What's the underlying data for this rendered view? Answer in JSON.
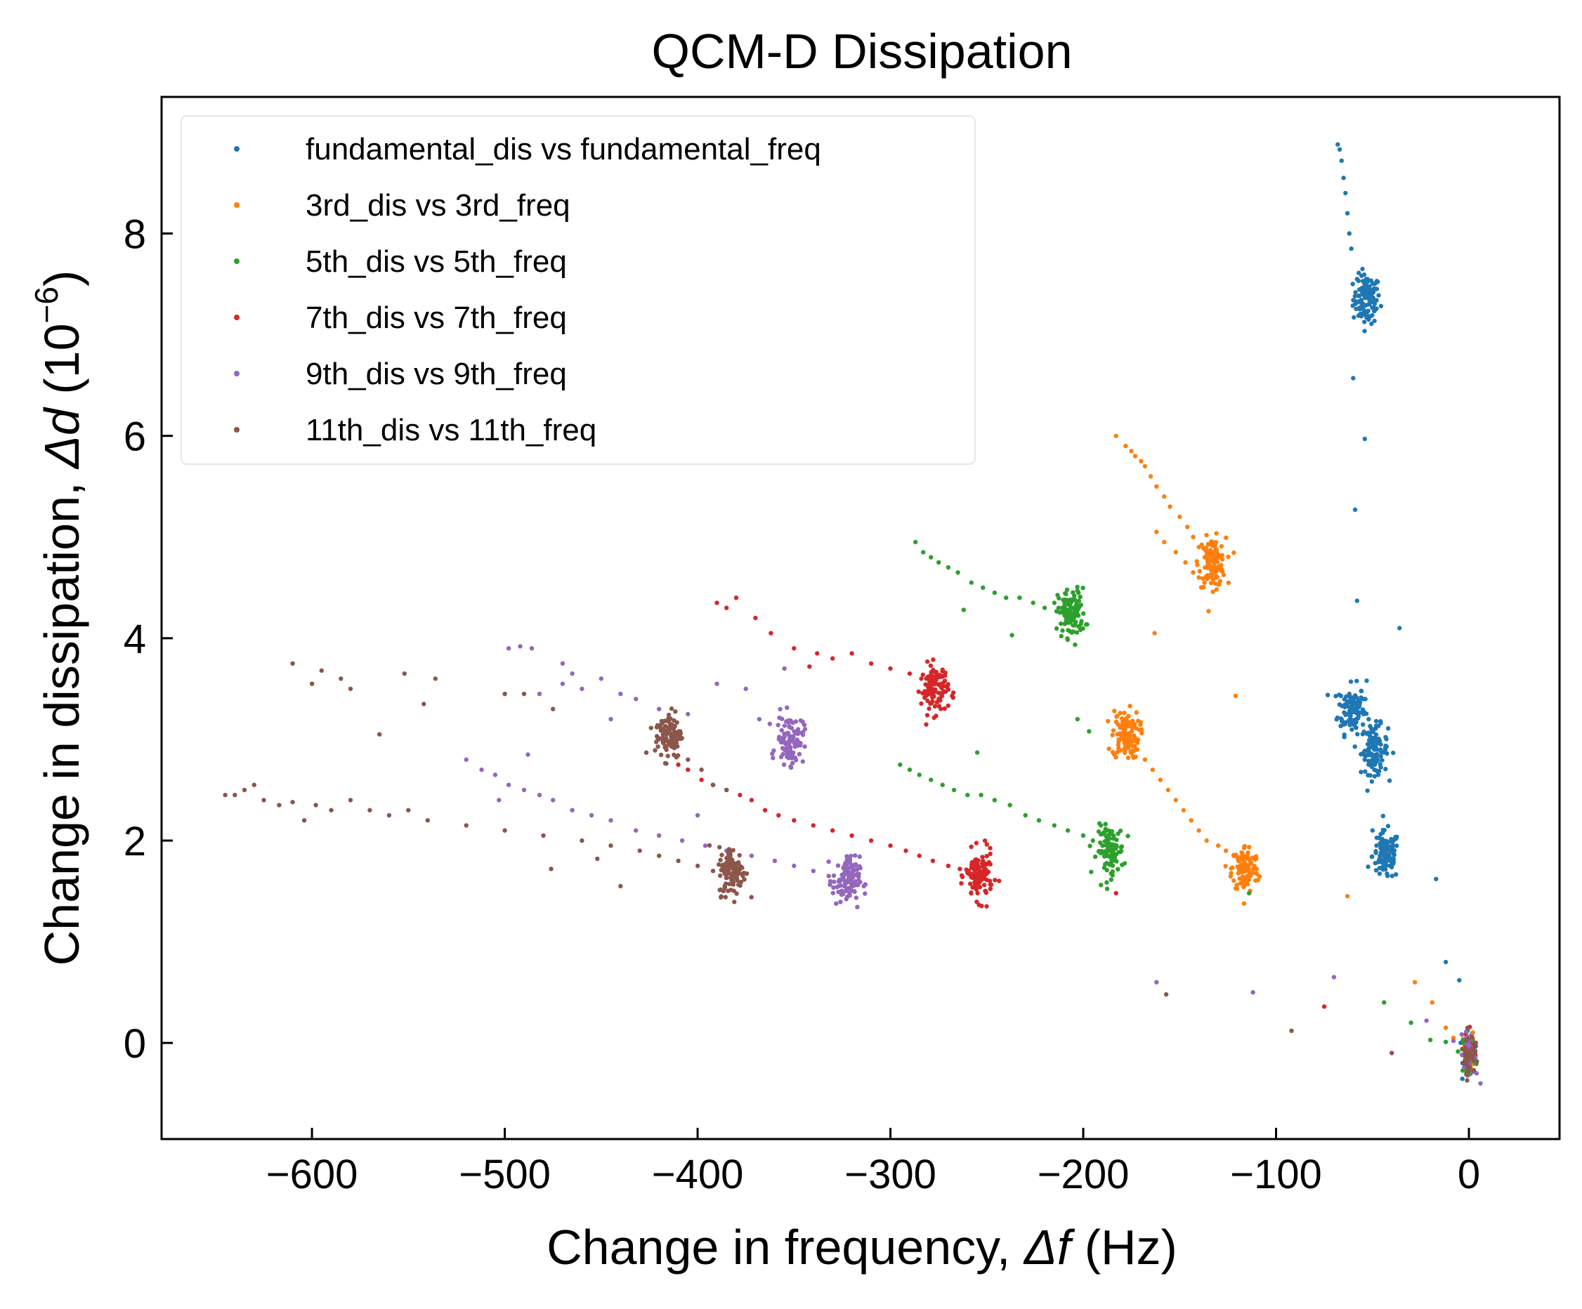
{
  "chart_data": {
    "type": "scatter",
    "title": "QCM-D Dissipation",
    "xlabel_prefix": "Change in frequency, ",
    "xlabel_symbol": "Δf",
    "xlabel_suffix": " (Hz)",
    "ylabel_prefix": "Change in dissipation, ",
    "ylabel_symbol": "Δd",
    "ylabel_suffix_base": " (10",
    "ylabel_suffix_exp": "−6",
    "ylabel_suffix_close": ")",
    "xlim": [
      -678,
      47
    ],
    "ylim": [
      -0.95,
      9.35
    ],
    "xticks": [
      -600,
      -500,
      -400,
      -300,
      -200,
      -100,
      0
    ],
    "xtick_labels": [
      "−600",
      "−500",
      "−400",
      "−300",
      "−200",
      "−100",
      "0"
    ],
    "yticks": [
      0,
      2,
      4,
      6,
      8
    ],
    "ytick_labels": [
      "0",
      "2",
      "4",
      "6",
      "8"
    ],
    "grid": false,
    "legend_position": "top-left",
    "series": [
      {
        "name": "fundamental_dis vs fundamental_freq",
        "color": "#1f77b4",
        "points": [
          [
            -68,
            8.88
          ],
          [
            -67,
            8.83
          ],
          [
            -66,
            8.72
          ],
          [
            -65,
            8.55
          ],
          [
            -64,
            8.4
          ],
          [
            -63,
            8.2
          ],
          [
            -62,
            8.0
          ],
          [
            -61,
            7.85
          ],
          [
            -58,
            7.55
          ],
          [
            -56,
            7.45
          ],
          [
            -54,
            7.5
          ],
          [
            -53,
            7.4
          ],
          [
            -52,
            7.3
          ],
          [
            -53,
            7.2
          ],
          [
            -52,
            7.15
          ],
          [
            -60,
            6.57
          ],
          [
            -54,
            5.97
          ],
          [
            -59,
            5.27
          ],
          [
            -58,
            4.37
          ],
          [
            -36,
            4.1
          ],
          [
            -62,
            3.45
          ],
          [
            -60,
            3.35
          ],
          [
            -62,
            3.25
          ],
          [
            -60,
            3.15
          ],
          [
            -58,
            3.3
          ],
          [
            -55,
            3.4
          ],
          [
            -53,
            3.58
          ],
          [
            -52,
            3.2
          ],
          [
            -51,
            3.0
          ],
          [
            -50,
            2.8
          ],
          [
            -49,
            2.7
          ],
          [
            -48,
            2.9
          ],
          [
            -47,
            2.65
          ],
          [
            -44,
            1.85
          ],
          [
            -42,
            1.95
          ],
          [
            -41,
            1.75
          ],
          [
            -43,
            1.8
          ],
          [
            -40,
            1.9
          ],
          [
            -45,
            2.0
          ],
          [
            -50,
            2.1
          ],
          [
            -17,
            1.62
          ],
          [
            -12,
            0.8
          ],
          [
            -5,
            0.62
          ]
        ],
        "cluster_centers": [
          [
            -53,
            7.35
          ],
          [
            -61,
            3.3
          ],
          [
            -49,
            2.9
          ],
          [
            -43,
            1.85
          ]
        ],
        "origin_cluster": [
          0,
          -0.1
        ]
      },
      {
        "name": "3rd_dis vs 3rd_freq",
        "color": "#ff7f0e",
        "points": [
          [
            -183,
            6.0
          ],
          [
            -178,
            5.9
          ],
          [
            -175,
            5.85
          ],
          [
            -173,
            5.8
          ],
          [
            -170,
            5.75
          ],
          [
            -168,
            5.7
          ],
          [
            -165,
            5.6
          ],
          [
            -162,
            5.5
          ],
          [
            -158,
            5.4
          ],
          [
            -155,
            5.3
          ],
          [
            -150,
            5.2
          ],
          [
            -146,
            5.1
          ],
          [
            -143,
            5.0
          ],
          [
            -140,
            4.9
          ],
          [
            -137,
            4.8
          ],
          [
            -135,
            4.75
          ],
          [
            -162,
            5.05
          ],
          [
            -158,
            4.95
          ],
          [
            -152,
            4.85
          ],
          [
            -147,
            4.75
          ],
          [
            -143,
            4.65
          ],
          [
            -140,
            4.6
          ],
          [
            -133,
            4.85
          ],
          [
            -132,
            4.75
          ],
          [
            -132,
            4.65
          ],
          [
            -131,
            4.6
          ],
          [
            -163,
            4.05
          ],
          [
            -121,
            3.43
          ],
          [
            -63,
            1.45
          ],
          [
            -180,
            3.05
          ],
          [
            -176,
            3.0
          ],
          [
            -172,
            2.9
          ],
          [
            -168,
            2.8
          ],
          [
            -164,
            2.7
          ],
          [
            -160,
            2.6
          ],
          [
            -156,
            2.5
          ],
          [
            -152,
            2.4
          ],
          [
            -148,
            2.3
          ],
          [
            -144,
            2.2
          ],
          [
            -140,
            2.1
          ],
          [
            -136,
            2.0
          ],
          [
            -130,
            1.95
          ],
          [
            -126,
            1.9
          ],
          [
            -122,
            1.85
          ],
          [
            -119,
            1.8
          ],
          [
            -117,
            1.75
          ],
          [
            -116,
            1.7
          ],
          [
            -115,
            1.65
          ],
          [
            -28,
            0.6
          ],
          [
            -19,
            0.4
          ],
          [
            -12,
            0.15
          ],
          [
            -8,
            0.05
          ]
        ],
        "cluster_centers": [
          [
            -133,
            4.75
          ],
          [
            -116,
            1.72
          ],
          [
            -178,
            3.05
          ]
        ],
        "origin_cluster": [
          0,
          -0.1
        ]
      },
      {
        "name": "5th_dis vs 5th_freq",
        "color": "#2ca02c",
        "points": [
          [
            -287,
            4.95
          ],
          [
            -283,
            4.85
          ],
          [
            -279,
            4.8
          ],
          [
            -275,
            4.75
          ],
          [
            -270,
            4.7
          ],
          [
            -265,
            4.65
          ],
          [
            -258,
            4.55
          ],
          [
            -252,
            4.5
          ],
          [
            -246,
            4.45
          ],
          [
            -240,
            4.4
          ],
          [
            -233,
            4.4
          ],
          [
            -226,
            4.35
          ],
          [
            -220,
            4.3
          ],
          [
            -215,
            4.35
          ],
          [
            -210,
            4.3
          ],
          [
            -207,
            4.2
          ],
          [
            -262,
            4.28
          ],
          [
            -237,
            4.03
          ],
          [
            -203,
            3.2
          ],
          [
            -197,
            3.08
          ],
          [
            -295,
            2.75
          ],
          [
            -290,
            2.7
          ],
          [
            -285,
            2.65
          ],
          [
            -279,
            2.6
          ],
          [
            -273,
            2.55
          ],
          [
            -267,
            2.5
          ],
          [
            -260,
            2.45
          ],
          [
            -253,
            2.45
          ],
          [
            -246,
            2.4
          ],
          [
            -238,
            2.35
          ],
          [
            -230,
            2.25
          ],
          [
            -223,
            2.2
          ],
          [
            -215,
            2.15
          ],
          [
            -208,
            2.1
          ],
          [
            -200,
            2.05
          ],
          [
            -195,
            2.0
          ],
          [
            -190,
            1.95
          ],
          [
            -187,
            1.9
          ],
          [
            -184,
            1.85
          ],
          [
            -255,
            2.87
          ],
          [
            -114,
            1.48
          ],
          [
            -44,
            0.4
          ],
          [
            -30,
            0.2
          ],
          [
            -20,
            0.03
          ],
          [
            -12,
            0.01
          ]
        ],
        "cluster_centers": [
          [
            -206,
            4.25
          ],
          [
            -186,
            1.9
          ]
        ],
        "origin_cluster": [
          0,
          -0.1
        ]
      },
      {
        "name": "7th_dis vs 7th_freq",
        "color": "#d62728",
        "points": [
          [
            -390,
            4.35
          ],
          [
            -385,
            4.3
          ],
          [
            -380,
            4.4
          ],
          [
            -370,
            4.2
          ],
          [
            -362,
            4.05
          ],
          [
            -350,
            3.9
          ],
          [
            -338,
            3.85
          ],
          [
            -330,
            3.8
          ],
          [
            -320,
            3.85
          ],
          [
            -310,
            3.75
          ],
          [
            -300,
            3.7
          ],
          [
            -290,
            3.65
          ],
          [
            -284,
            3.6
          ],
          [
            -268,
            3.43
          ],
          [
            -342,
            3.72
          ],
          [
            -410,
            2.75
          ],
          [
            -405,
            2.7
          ],
          [
            -398,
            2.6
          ],
          [
            -392,
            2.55
          ],
          [
            -385,
            2.5
          ],
          [
            -378,
            2.45
          ],
          [
            -372,
            2.4
          ],
          [
            -365,
            2.3
          ],
          [
            -358,
            2.25
          ],
          [
            -350,
            2.2
          ],
          [
            -340,
            2.15
          ],
          [
            -330,
            2.1
          ],
          [
            -320,
            2.05
          ],
          [
            -310,
            2.0
          ],
          [
            -300,
            1.95
          ],
          [
            -292,
            1.9
          ],
          [
            -285,
            1.85
          ],
          [
            -278,
            1.8
          ],
          [
            -270,
            1.75
          ],
          [
            -264,
            1.72
          ],
          [
            -260,
            1.68
          ],
          [
            -256,
            1.65
          ],
          [
            -183,
            1.48
          ],
          [
            -75,
            0.36
          ]
        ],
        "cluster_centers": [
          [
            -277,
            3.5
          ],
          [
            -254,
            1.65
          ]
        ],
        "origin_cluster": [
          0,
          -0.1
        ]
      },
      {
        "name": "9th_dis vs 9th_freq",
        "color": "#9467bd",
        "points": [
          [
            -498,
            3.9
          ],
          [
            -492,
            3.92
          ],
          [
            -486,
            3.9
          ],
          [
            -470,
            3.75
          ],
          [
            -465,
            3.65
          ],
          [
            -460,
            3.5
          ],
          [
            -450,
            3.6
          ],
          [
            -440,
            3.45
          ],
          [
            -432,
            3.4
          ],
          [
            -420,
            3.3
          ],
          [
            -405,
            3.25
          ],
          [
            -390,
            3.55
          ],
          [
            -375,
            3.5
          ],
          [
            -368,
            3.2
          ],
          [
            -482,
            3.45
          ],
          [
            -470,
            3.55
          ],
          [
            -445,
            3.2
          ],
          [
            -355,
            3.7
          ],
          [
            -520,
            2.8
          ],
          [
            -512,
            2.7
          ],
          [
            -505,
            2.65
          ],
          [
            -498,
            2.55
          ],
          [
            -490,
            2.5
          ],
          [
            -482,
            2.45
          ],
          [
            -475,
            2.4
          ],
          [
            -465,
            2.3
          ],
          [
            -455,
            2.25
          ],
          [
            -445,
            2.2
          ],
          [
            -432,
            2.1
          ],
          [
            -420,
            2.05
          ],
          [
            -408,
            2.0
          ],
          [
            -396,
            1.95
          ],
          [
            -385,
            1.9
          ],
          [
            -372,
            1.85
          ],
          [
            -360,
            1.8
          ],
          [
            -350,
            1.75
          ],
          [
            -340,
            1.7
          ],
          [
            -332,
            1.65
          ],
          [
            -326,
            1.6
          ],
          [
            -400,
            2.25
          ],
          [
            -503,
            2.4
          ],
          [
            -488,
            2.85
          ],
          [
            -162,
            0.6
          ],
          [
            -112,
            0.5
          ],
          [
            -70,
            0.65
          ],
          [
            -22,
            0.22
          ],
          [
            -8,
            0.02
          ],
          [
            4,
            -0.3
          ],
          [
            6,
            -0.4
          ]
        ],
        "cluster_centers": [
          [
            -352,
            3.0
          ],
          [
            -323,
            1.6
          ]
        ],
        "origin_cluster": [
          0,
          -0.1
        ]
      },
      {
        "name": "11th_dis vs 11th_freq",
        "color": "#8c564b",
        "points": [
          [
            -645,
            2.45
          ],
          [
            -640,
            2.45
          ],
          [
            -635,
            2.5
          ],
          [
            -630,
            2.55
          ],
          [
            -625,
            2.4
          ],
          [
            -617,
            2.35
          ],
          [
            -610,
            2.38
          ],
          [
            -604,
            2.2
          ],
          [
            -598,
            2.35
          ],
          [
            -590,
            2.3
          ],
          [
            -580,
            2.4
          ],
          [
            -570,
            2.3
          ],
          [
            -560,
            2.25
          ],
          [
            -550,
            2.3
          ],
          [
            -540,
            2.2
          ],
          [
            -520,
            2.15
          ],
          [
            -500,
            2.1
          ],
          [
            -480,
            2.05
          ],
          [
            -460,
            2.0
          ],
          [
            -445,
            1.95
          ],
          [
            -430,
            1.9
          ],
          [
            -420,
            1.85
          ],
          [
            -410,
            1.8
          ],
          [
            -400,
            1.75
          ],
          [
            -392,
            1.7
          ],
          [
            -610,
            3.75
          ],
          [
            -600,
            3.55
          ],
          [
            -595,
            3.68
          ],
          [
            -585,
            3.6
          ],
          [
            -580,
            3.5
          ],
          [
            -565,
            3.05
          ],
          [
            -552,
            3.65
          ],
          [
            -542,
            3.35
          ],
          [
            -536,
            3.6
          ],
          [
            -500,
            3.45
          ],
          [
            -490,
            3.45
          ],
          [
            -475,
            3.3
          ],
          [
            -405,
            2.8
          ],
          [
            -398,
            2.7
          ],
          [
            -392,
            2.55
          ],
          [
            -385,
            2.5
          ],
          [
            -476,
            1.72
          ],
          [
            -452,
            1.82
          ],
          [
            -440,
            1.55
          ],
          [
            -157,
            0.48
          ],
          [
            -92,
            0.12
          ],
          [
            -40,
            -0.1
          ]
        ],
        "cluster_centers": [
          [
            -415,
            3.05
          ],
          [
            -382,
            1.7
          ]
        ],
        "origin_cluster": [
          0,
          -0.1
        ]
      }
    ]
  }
}
